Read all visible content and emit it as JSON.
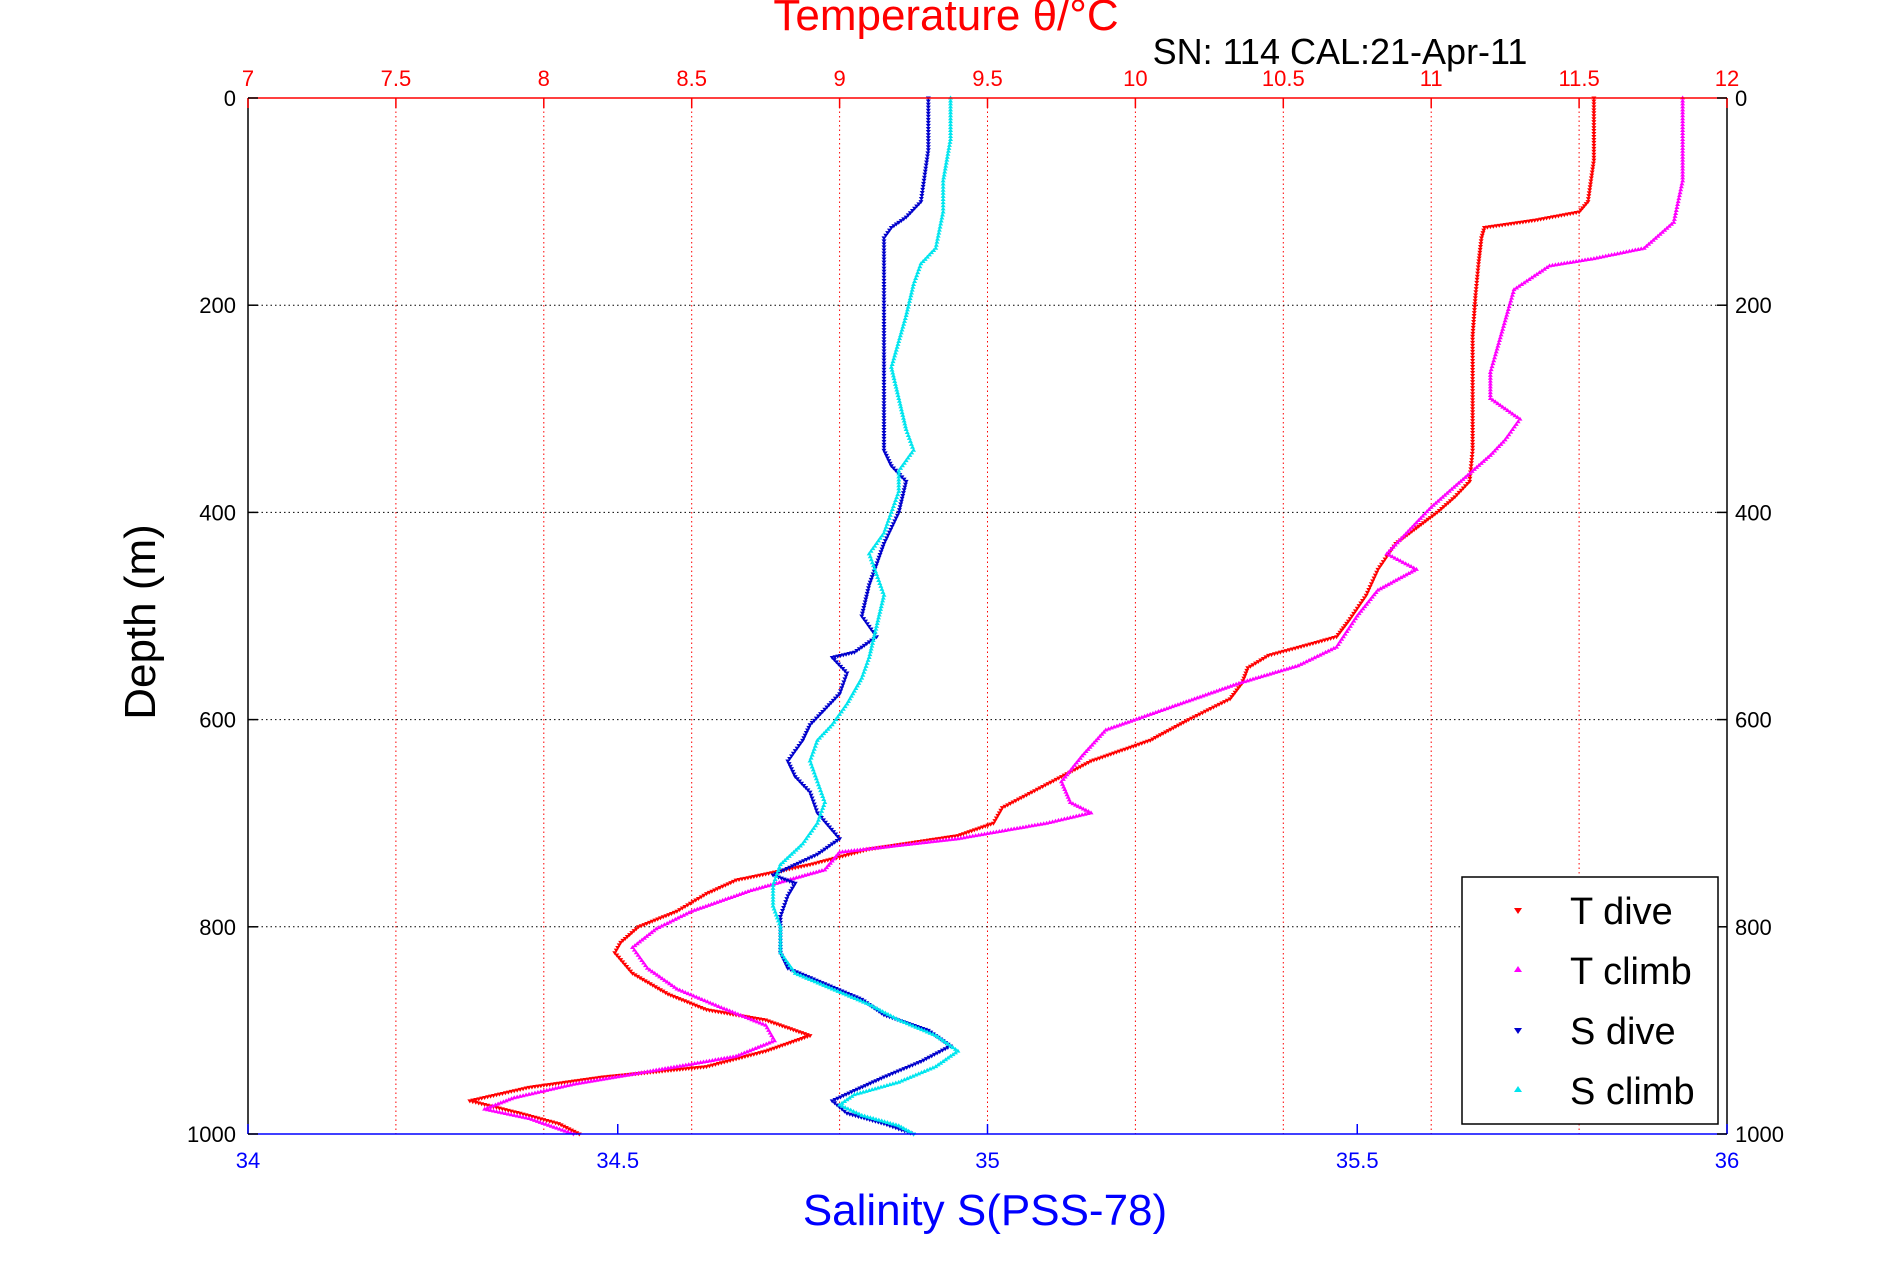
{
  "header": {
    "top_axis_title": "Temperature θ/°C",
    "subtitle": "SN: 114  CAL:21-Apr-11"
  },
  "chart_data": {
    "type": "scatter",
    "title": "Temperature θ/°C",
    "subtitle": "SN: 114  CAL:21-Apr-11",
    "xlabel": "Salinity S(PSS-78)",
    "ylabel": "Depth (m)",
    "x_top_label": "Temperature θ/°C",
    "xlim_bottom": [
      34,
      36
    ],
    "xlim_top": [
      7,
      12
    ],
    "ylim": [
      0,
      1000
    ],
    "y_reversed": true,
    "x_bottom_ticks": [
      "34",
      "34.5",
      "35",
      "35.5",
      "36"
    ],
    "x_top_ticks": [
      "7",
      "7.5",
      "8",
      "8.5",
      "9",
      "9.5",
      "10",
      "10.5",
      "11",
      "11.5",
      "12"
    ],
    "y_ticks_left": [
      "0",
      "200",
      "400",
      "600",
      "800",
      "1000"
    ],
    "y_ticks_right": [
      "0",
      "200",
      "400",
      "600",
      "800",
      "1000"
    ],
    "grid": true,
    "legend_position": "bottom-right",
    "series": [
      {
        "name": "T dive",
        "axis": "top",
        "color": "#ff0000",
        "points": [
          [
            11.55,
            0
          ],
          [
            11.55,
            60
          ],
          [
            11.53,
            100
          ],
          [
            11.5,
            110
          ],
          [
            11.35,
            118
          ],
          [
            11.18,
            125
          ],
          [
            11.17,
            135
          ],
          [
            11.16,
            160
          ],
          [
            11.15,
            190
          ],
          [
            11.14,
            230
          ],
          [
            11.14,
            300
          ],
          [
            11.14,
            340
          ],
          [
            11.13,
            370
          ],
          [
            11.08,
            385
          ],
          [
            11.02,
            400
          ],
          [
            10.95,
            415
          ],
          [
            10.88,
            430
          ],
          [
            10.82,
            455
          ],
          [
            10.78,
            480
          ],
          [
            10.72,
            505
          ],
          [
            10.68,
            520
          ],
          [
            10.58,
            528
          ],
          [
            10.45,
            538
          ],
          [
            10.38,
            550
          ],
          [
            10.36,
            565
          ],
          [
            10.32,
            580
          ],
          [
            10.18,
            600
          ],
          [
            10.05,
            620
          ],
          [
            9.85,
            640
          ],
          [
            9.75,
            655
          ],
          [
            9.65,
            670
          ],
          [
            9.55,
            685
          ],
          [
            9.52,
            700
          ],
          [
            9.4,
            712
          ],
          [
            9.1,
            725
          ],
          [
            8.9,
            740
          ],
          [
            8.65,
            755
          ],
          [
            8.55,
            768
          ],
          [
            8.45,
            785
          ],
          [
            8.32,
            800
          ],
          [
            8.26,
            815
          ],
          [
            8.24,
            825
          ],
          [
            8.3,
            845
          ],
          [
            8.42,
            865
          ],
          [
            8.55,
            880
          ],
          [
            8.75,
            890
          ],
          [
            8.9,
            905
          ],
          [
            8.75,
            920
          ],
          [
            8.55,
            935
          ],
          [
            8.2,
            945
          ],
          [
            7.95,
            955
          ],
          [
            7.75,
            968
          ],
          [
            7.92,
            980
          ],
          [
            8.05,
            990
          ],
          [
            8.12,
            1000
          ]
        ]
      },
      {
        "name": "T climb",
        "axis": "top",
        "color": "#ff00ff",
        "points": [
          [
            11.85,
            0
          ],
          [
            11.85,
            80
          ],
          [
            11.82,
            120
          ],
          [
            11.72,
            145
          ],
          [
            11.55,
            155
          ],
          [
            11.4,
            162
          ],
          [
            11.28,
            185
          ],
          [
            11.25,
            215
          ],
          [
            11.22,
            245
          ],
          [
            11.2,
            265
          ],
          [
            11.2,
            290
          ],
          [
            11.3,
            310
          ],
          [
            11.25,
            330
          ],
          [
            11.2,
            345
          ],
          [
            11.1,
            370
          ],
          [
            11.0,
            395
          ],
          [
            10.95,
            410
          ],
          [
            10.85,
            440
          ],
          [
            10.95,
            455
          ],
          [
            10.82,
            475
          ],
          [
            10.75,
            500
          ],
          [
            10.68,
            530
          ],
          [
            10.55,
            548
          ],
          [
            10.35,
            565
          ],
          [
            10.2,
            580
          ],
          [
            10.05,
            595
          ],
          [
            9.9,
            610
          ],
          [
            9.82,
            635
          ],
          [
            9.75,
            660
          ],
          [
            9.78,
            680
          ],
          [
            9.85,
            690
          ],
          [
            9.7,
            700
          ],
          [
            9.4,
            715
          ],
          [
            9.0,
            728
          ],
          [
            8.95,
            745
          ],
          [
            8.7,
            765
          ],
          [
            8.5,
            785
          ],
          [
            8.38,
            802
          ],
          [
            8.3,
            820
          ],
          [
            8.35,
            840
          ],
          [
            8.45,
            860
          ],
          [
            8.6,
            878
          ],
          [
            8.75,
            895
          ],
          [
            8.78,
            910
          ],
          [
            8.65,
            925
          ],
          [
            8.45,
            935
          ],
          [
            8.1,
            952
          ],
          [
            7.9,
            965
          ],
          [
            7.8,
            976
          ],
          [
            7.95,
            985
          ],
          [
            8.1,
            1000
          ]
        ]
      },
      {
        "name": "S dive",
        "axis": "bottom",
        "color": "#0000cc",
        "points": [
          [
            34.92,
            0
          ],
          [
            34.92,
            50
          ],
          [
            34.91,
            100
          ],
          [
            34.89,
            115
          ],
          [
            34.87,
            125
          ],
          [
            34.86,
            135
          ],
          [
            34.86,
            170
          ],
          [
            34.86,
            200
          ],
          [
            34.86,
            250
          ],
          [
            34.86,
            300
          ],
          [
            34.86,
            340
          ],
          [
            34.87,
            355
          ],
          [
            34.89,
            370
          ],
          [
            34.88,
            400
          ],
          [
            34.86,
            430
          ],
          [
            34.84,
            470
          ],
          [
            34.83,
            500
          ],
          [
            34.85,
            520
          ],
          [
            34.82,
            535
          ],
          [
            34.79,
            540
          ],
          [
            34.81,
            555
          ],
          [
            34.8,
            575
          ],
          [
            34.78,
            590
          ],
          [
            34.76,
            605
          ],
          [
            34.75,
            620
          ],
          [
            34.73,
            640
          ],
          [
            34.74,
            655
          ],
          [
            34.76,
            670
          ],
          [
            34.77,
            690
          ],
          [
            34.8,
            715
          ],
          [
            34.77,
            730
          ],
          [
            34.74,
            740
          ],
          [
            34.71,
            750
          ],
          [
            34.74,
            758
          ],
          [
            34.73,
            770
          ],
          [
            34.72,
            790
          ],
          [
            34.72,
            810
          ],
          [
            34.72,
            825
          ],
          [
            34.73,
            840
          ],
          [
            34.78,
            855
          ],
          [
            34.83,
            870
          ],
          [
            34.86,
            885
          ],
          [
            34.92,
            900
          ],
          [
            34.95,
            915
          ],
          [
            34.91,
            930
          ],
          [
            34.86,
            945
          ],
          [
            34.82,
            958
          ],
          [
            34.79,
            968
          ],
          [
            34.81,
            980
          ],
          [
            34.86,
            990
          ],
          [
            34.9,
            1000
          ]
        ]
      },
      {
        "name": "S climb",
        "axis": "bottom",
        "color": "#00e5ee",
        "points": [
          [
            34.95,
            0
          ],
          [
            34.95,
            40
          ],
          [
            34.94,
            80
          ],
          [
            34.94,
            110
          ],
          [
            34.93,
            145
          ],
          [
            34.91,
            160
          ],
          [
            34.9,
            180
          ],
          [
            34.89,
            210
          ],
          [
            34.88,
            235
          ],
          [
            34.87,
            260
          ],
          [
            34.88,
            290
          ],
          [
            34.89,
            320
          ],
          [
            34.9,
            340
          ],
          [
            34.88,
            360
          ],
          [
            34.88,
            380
          ],
          [
            34.87,
            400
          ],
          [
            34.86,
            420
          ],
          [
            34.84,
            440
          ],
          [
            34.85,
            460
          ],
          [
            34.86,
            480
          ],
          [
            34.85,
            510
          ],
          [
            34.84,
            540
          ],
          [
            34.83,
            560
          ],
          [
            34.81,
            585
          ],
          [
            34.79,
            605
          ],
          [
            34.77,
            620
          ],
          [
            34.76,
            640
          ],
          [
            34.77,
            660
          ],
          [
            34.78,
            680
          ],
          [
            34.77,
            700
          ],
          [
            34.75,
            720
          ],
          [
            34.72,
            740
          ],
          [
            34.71,
            760
          ],
          [
            34.71,
            780
          ],
          [
            34.72,
            800
          ],
          [
            34.72,
            825
          ],
          [
            34.74,
            845
          ],
          [
            34.79,
            860
          ],
          [
            34.84,
            875
          ],
          [
            34.88,
            890
          ],
          [
            34.93,
            905
          ],
          [
            34.96,
            920
          ],
          [
            34.93,
            935
          ],
          [
            34.88,
            950
          ],
          [
            34.82,
            962
          ],
          [
            34.8,
            972
          ],
          [
            34.83,
            982
          ],
          [
            34.88,
            992
          ],
          [
            34.9,
            1000
          ]
        ]
      }
    ]
  }
}
